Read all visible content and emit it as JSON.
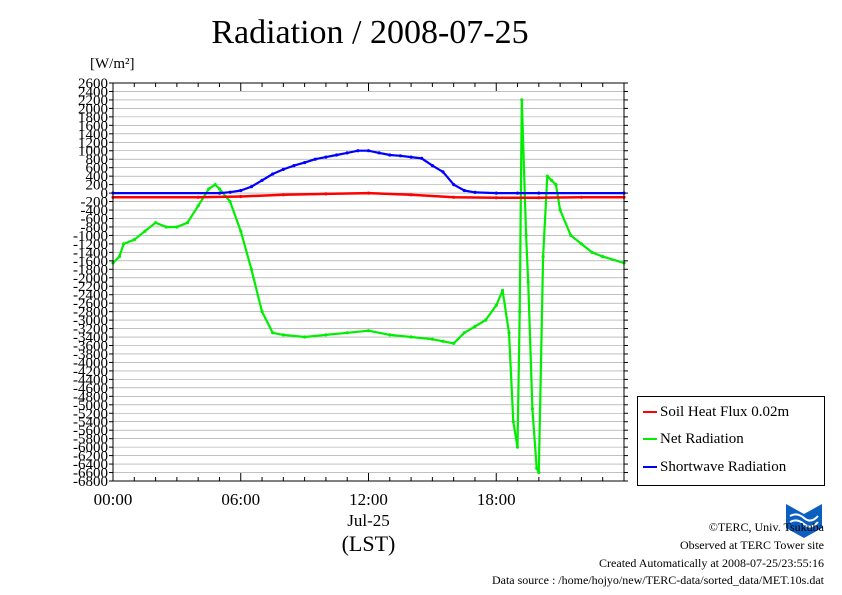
{
  "chart_data": {
    "type": "line",
    "title": "Radiation / 2008-07-25",
    "ylabel_unit": "[W/m²]",
    "xlabel_date": "Jul-25",
    "xlabel": "(LST)",
    "x_unit": "hours LST",
    "xlim": [
      0,
      24
    ],
    "ylim": [
      -6800,
      2600
    ],
    "y_ticks": [
      2600,
      2400,
      2200,
      2000,
      1800,
      1600,
      1400,
      1200,
      1000,
      800,
      600,
      400,
      200,
      0,
      -200,
      -400,
      -600,
      -800,
      -1000,
      -1200,
      -1400,
      -1600,
      -1800,
      -2000,
      -2200,
      -2400,
      -2600,
      -2800,
      -3000,
      -3200,
      -3400,
      -3600,
      -3800,
      -4000,
      -4200,
      -4400,
      -4600,
      -4800,
      -5000,
      -5200,
      -5400,
      -5600,
      -5800,
      -6000,
      -6200,
      -6400,
      -6600,
      -6800
    ],
    "x_ticks": [
      {
        "x": 0,
        "label": "00:00"
      },
      {
        "x": 6,
        "label": "06:00"
      },
      {
        "x": 12,
        "label": "12:00"
      },
      {
        "x": 18,
        "label": "18:00"
      }
    ],
    "grid": "horizontal",
    "legend_position": "bottom-right",
    "series": [
      {
        "name": "Soil Heat Flux 0.02m",
        "color": "#ff0000",
        "x": [
          0,
          4,
          6,
          8,
          10,
          12,
          14,
          16,
          18,
          20,
          22,
          24
        ],
        "values": [
          -100,
          -100,
          -80,
          -40,
          -20,
          0,
          -40,
          -100,
          -110,
          -110,
          -100,
          -100
        ]
      },
      {
        "name": "Net Radiation",
        "color": "#00ee00",
        "x": [
          0,
          0.3,
          0.5,
          1,
          1.5,
          2,
          2.5,
          3,
          3.5,
          4,
          4.5,
          4.8,
          5,
          5.5,
          6,
          6.5,
          7,
          7.5,
          8,
          9,
          10,
          11,
          12,
          13,
          14,
          15,
          15.5,
          16,
          16.5,
          17,
          17.5,
          18,
          18.3,
          18.6,
          18.8,
          19,
          19.1,
          19.2,
          19.4,
          19.5,
          19.7,
          19.9,
          20,
          20.2,
          20.4,
          20.6,
          20.8,
          21,
          21.5,
          22,
          22.5,
          23,
          24
        ],
        "values": [
          -1650,
          -1500,
          -1200,
          -1100,
          -900,
          -700,
          -800,
          -800,
          -700,
          -300,
          100,
          200,
          100,
          -200,
          -900,
          -1800,
          -2800,
          -3300,
          -3350,
          -3400,
          -3350,
          -3300,
          -3250,
          -3350,
          -3400,
          -3450,
          -3500,
          -3550,
          -3300,
          -3150,
          -3000,
          -2650,
          -2300,
          -3300,
          -5400,
          -6000,
          -2800,
          2200,
          -1000,
          -2100,
          -5100,
          -6500,
          -6600,
          -1500,
          400,
          300,
          200,
          -400,
          -1000,
          -1200,
          -1400,
          -1500,
          -1650
        ]
      },
      {
        "name": "Shortwave Radiation",
        "color": "#0000ff",
        "x": [
          0,
          5,
          5.5,
          6,
          6.5,
          7,
          7.5,
          8,
          8.5,
          9,
          9.5,
          10,
          10.5,
          11,
          11.5,
          12,
          12.5,
          13,
          13.5,
          14,
          14.5,
          15,
          15.5,
          16,
          16.5,
          17,
          18,
          19,
          20,
          24
        ],
        "values": [
          0,
          0,
          20,
          60,
          150,
          300,
          450,
          560,
          650,
          720,
          800,
          850,
          900,
          950,
          1000,
          1000,
          950,
          900,
          880,
          850,
          820,
          650,
          500,
          200,
          60,
          15,
          0,
          0,
          0,
          0
        ]
      }
    ]
  },
  "credits": {
    "line1": "©TERC, Univ. Tsukuba",
    "line2": "Observed at TERC Tower site",
    "line3": "Created Automatically at 2008-07-25/23:55:16",
    "line4": "Data source : /home/hojyo/new/TERC-data/sorted_data/MET.10s.dat"
  },
  "logo": {
    "text": "TERC",
    "color": "#0a5fc0"
  }
}
